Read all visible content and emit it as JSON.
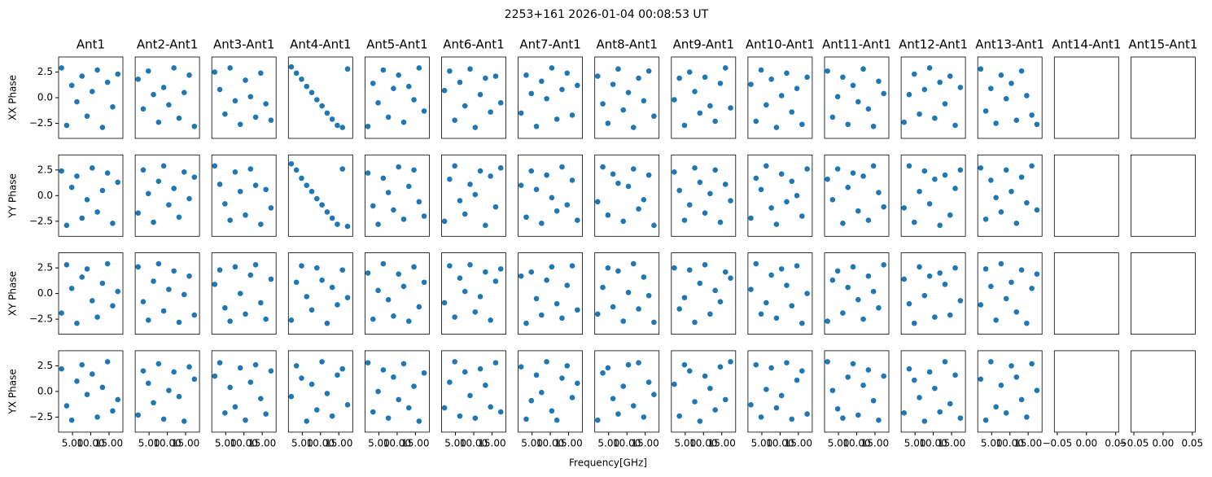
{
  "chart_data": {
    "type": "scatter",
    "title": "2253+161 2026-01-04 00:08:53 UT",
    "xlabel": "Frequency[GHz]",
    "rows": [
      "XX Phase",
      "YY Phase",
      "XY Phase",
      "YX Phase"
    ],
    "columns": [
      "Ant1",
      "Ant2-Ant1",
      "Ant3-Ant1",
      "Ant4-Ant1",
      "Ant5-Ant1",
      "Ant6-Ant1",
      "Ant7-Ant1",
      "Ant8-Ant1",
      "Ant9-Ant1",
      "Ant10-Ant1",
      "Ant11-Ant1",
      "Ant12-Ant1",
      "Ant13-Ant1",
      "Ant14-Ant1",
      "Ant15-Ant1"
    ],
    "color": "#1f77b4",
    "xlim": [
      1.2,
      18.8
    ],
    "xticks": [
      {
        "value": 5,
        "label": "5.00"
      },
      {
        "value": 10,
        "label": "10.00"
      },
      {
        "value": 15,
        "label": "15.00"
      }
    ],
    "ylim": [
      -3.97,
      3.97
    ],
    "yticks": [
      {
        "value": -2.5,
        "label": "−2.5"
      },
      {
        "value": 0,
        "label": "0.0"
      },
      2.5
    ],
    "empty_xlim": [
      -0.055,
      0.055
    ],
    "empty_xticks": [
      {
        "value": -0.05,
        "label": "−0.05"
      },
      {
        "value": 0,
        "label": "0.00"
      },
      0.05
    ],
    "x": [
      2.0,
      3.4,
      4.8,
      6.2,
      7.6,
      9.0,
      10.4,
      11.8,
      13.2,
      14.6,
      16.0,
      17.4
    ],
    "panels": [
      [
        [
          2.9,
          -2.7,
          1.2,
          -0.4,
          2.1,
          -1.8,
          0.6,
          2.7,
          -2.9,
          1.5,
          -0.9,
          2.3
        ],
        [
          1.8,
          -1.1,
          2.6,
          0.3,
          -2.4,
          1.0,
          -0.7,
          2.9,
          -2.0,
          0.5,
          2.2,
          -2.8
        ],
        [
          2.5,
          0.8,
          -1.6,
          2.9,
          -0.3,
          -2.6,
          1.7,
          0.1,
          -1.9,
          2.4,
          -0.6,
          -2.2
        ],
        [
          3.0,
          2.4,
          1.8,
          1.1,
          0.5,
          -0.2,
          -0.8,
          -1.5,
          -2.1,
          -2.7,
          -2.9,
          2.8
        ],
        [
          -2.8,
          1.4,
          -0.5,
          2.7,
          -1.9,
          0.9,
          2.2,
          -2.4,
          1.1,
          -0.2,
          2.9,
          -1.3
        ],
        [
          0.7,
          2.6,
          -2.2,
          1.5,
          -0.8,
          2.8,
          -2.9,
          0.3,
          1.9,
          -1.4,
          2.1,
          -0.5
        ],
        [
          -1.5,
          2.2,
          0.4,
          -2.8,
          1.6,
          -0.1,
          2.9,
          -2.1,
          0.8,
          2.4,
          -1.7,
          1.2
        ],
        [
          2.1,
          -0.6,
          -2.5,
          1.3,
          2.8,
          -1.2,
          0.5,
          -2.9,
          1.9,
          -0.3,
          2.6,
          -1.8
        ],
        [
          -0.2,
          1.9,
          -2.7,
          2.5,
          0.6,
          -1.5,
          2.0,
          -0.8,
          -2.3,
          1.4,
          2.9,
          -1.0
        ],
        [
          1.3,
          -2.3,
          2.7,
          -0.7,
          1.8,
          -2.9,
          0.2,
          2.4,
          -1.4,
          0.9,
          -2.6,
          2.0
        ],
        [
          2.6,
          -1.9,
          0.1,
          2.0,
          -2.6,
          1.2,
          -0.4,
          2.8,
          -1.1,
          -2.8,
          1.6,
          0.4
        ],
        [
          -2.4,
          0.3,
          2.3,
          -1.6,
          0.8,
          2.9,
          -2.0,
          1.5,
          -0.6,
          2.1,
          -2.7,
          1.0
        ],
        [
          2.8,
          -1.3,
          0.9,
          -2.5,
          2.2,
          -0.1,
          1.4,
          -2.2,
          2.6,
          0.2,
          -1.7,
          -2.6
        ]
      ],
      [
        [
          2.4,
          -2.9,
          0.8,
          1.9,
          -2.2,
          -0.4,
          2.7,
          -1.6,
          0.5,
          2.2,
          -2.7,
          1.3
        ],
        [
          -1.7,
          2.5,
          0.2,
          -2.6,
          1.4,
          2.9,
          -0.9,
          0.7,
          -2.1,
          2.3,
          -0.3,
          1.8
        ],
        [
          2.9,
          1.1,
          -0.8,
          -2.4,
          2.3,
          0.4,
          -1.9,
          2.6,
          1.0,
          -2.8,
          0.6,
          -1.2
        ],
        [
          3.1,
          2.5,
          1.7,
          1.0,
          0.4,
          -0.3,
          -0.9,
          -1.6,
          -2.2,
          -2.8,
          2.6,
          -3.0
        ],
        [
          2.2,
          -1.0,
          -2.8,
          1.7,
          0.3,
          -1.4,
          2.8,
          -2.3,
          0.9,
          2.5,
          -0.6,
          -2.0
        ],
        [
          -2.5,
          1.6,
          2.9,
          -0.5,
          -1.8,
          1.1,
          0.1,
          2.4,
          -2.9,
          1.9,
          -1.1,
          2.7
        ],
        [
          1.0,
          -2.1,
          2.4,
          0.6,
          -2.7,
          2.0,
          -0.2,
          -1.5,
          2.8,
          -0.9,
          1.5,
          -2.4
        ],
        [
          -0.6,
          2.8,
          -1.9,
          2.1,
          1.2,
          -2.5,
          0.9,
          2.6,
          -1.3,
          -0.4,
          2.0,
          -2.9
        ],
        [
          2.3,
          0.5,
          -2.4,
          -0.9,
          2.7,
          1.3,
          -1.7,
          0.2,
          2.5,
          -2.6,
          1.1,
          -0.5
        ],
        [
          -2.2,
          1.7,
          0.6,
          2.9,
          -1.2,
          -2.8,
          2.1,
          -0.6,
          1.4,
          0.0,
          -2.0,
          2.6
        ],
        [
          1.6,
          -0.4,
          2.6,
          -2.7,
          0.8,
          2.2,
          -1.5,
          1.9,
          -2.4,
          2.9,
          0.3,
          -1.1
        ],
        [
          -1.2,
          2.9,
          -2.6,
          0.4,
          2.4,
          -0.8,
          1.6,
          -2.9,
          2.0,
          -1.9,
          0.7,
          2.5
        ],
        [
          2.7,
          -2.3,
          1.5,
          -0.2,
          -1.6,
          2.5,
          0.4,
          -2.7,
          1.8,
          -0.7,
          2.9,
          -1.4
        ]
      ],
      [
        [
          -1.9,
          2.8,
          0.5,
          -2.9,
          1.6,
          2.4,
          -0.7,
          -2.3,
          1.0,
          2.9,
          -1.2,
          0.2
        ],
        [
          2.6,
          -0.8,
          -2.6,
          1.2,
          2.9,
          -1.7,
          0.4,
          2.2,
          -2.8,
          -0.1,
          1.7,
          -2.1
        ],
        [
          0.9,
          2.3,
          -1.4,
          -2.7,
          2.6,
          0.0,
          -2.0,
          1.8,
          2.8,
          -0.9,
          -2.5,
          1.4
        ],
        [
          -2.6,
          1.1,
          2.7,
          -0.3,
          -1.6,
          2.5,
          1.3,
          -2.9,
          0.6,
          -1.1,
          2.3,
          -0.4
        ],
        [
          2.0,
          -2.5,
          0.3,
          2.9,
          -0.6,
          -2.2,
          1.9,
          0.7,
          -2.7,
          2.6,
          -1.3,
          1.1
        ],
        [
          -0.9,
          2.7,
          -2.3,
          1.5,
          0.2,
          2.8,
          -1.8,
          -0.3,
          2.1,
          -2.6,
          1.2,
          2.4
        ],
        [
          1.7,
          -2.9,
          2.1,
          -0.5,
          -2.1,
          1.3,
          2.6,
          -1.0,
          -2.4,
          0.8,
          2.7,
          -1.6
        ],
        [
          -2.0,
          0.6,
          2.5,
          -1.3,
          2.2,
          -2.7,
          0.1,
          2.9,
          -1.5,
          1.6,
          -0.2,
          -2.8
        ],
        [
          2.5,
          -1.5,
          -0.4,
          2.3,
          -2.8,
          1.0,
          2.8,
          -2.0,
          0.3,
          -0.8,
          2.1,
          1.5
        ],
        [
          0.4,
          2.9,
          -2.0,
          -0.9,
          1.8,
          -2.4,
          2.4,
          0.8,
          -1.2,
          2.7,
          -2.9,
          0.0
        ],
        [
          -2.7,
          1.3,
          2.2,
          -1.9,
          0.6,
          2.6,
          -0.6,
          -2.5,
          1.7,
          0.2,
          -1.4,
          2.8
        ],
        [
          1.4,
          -1.0,
          -2.9,
          2.6,
          -0.2,
          1.7,
          -2.3,
          2.0,
          0.9,
          -2.1,
          2.5,
          -0.7
        ],
        [
          -1.1,
          2.4,
          0.7,
          -2.6,
          2.9,
          -0.5,
          1.1,
          -1.8,
          2.3,
          -2.9,
          0.5,
          1.9
        ]
      ],
      [
        [
          2.2,
          -1.4,
          -2.8,
          1.0,
          2.6,
          -0.3,
          1.7,
          -2.5,
          0.4,
          2.9,
          -1.9,
          -0.8
        ],
        [
          -2.3,
          2.0,
          0.8,
          -1.1,
          2.7,
          -2.7,
          0.1,
          1.9,
          -0.5,
          -2.9,
          2.4,
          1.2
        ],
        [
          1.5,
          2.8,
          -2.1,
          0.4,
          -1.5,
          2.3,
          -2.8,
          0.9,
          2.6,
          -0.7,
          -2.2,
          2.0
        ],
        [
          -0.5,
          2.5,
          1.3,
          -2.9,
          0.7,
          -1.8,
          2.9,
          -0.2,
          -2.4,
          1.6,
          2.2,
          -1.3
        ],
        [
          2.8,
          -2.0,
          0.0,
          2.1,
          -2.6,
          1.4,
          -0.8,
          2.7,
          -1.6,
          0.5,
          -2.9,
          1.8
        ],
        [
          -1.6,
          0.9,
          2.9,
          -2.4,
          1.9,
          -0.4,
          -2.6,
          2.2,
          0.6,
          -1.5,
          2.8,
          -2.0
        ],
        [
          2.4,
          -2.7,
          -0.9,
          1.6,
          -0.1,
          2.9,
          -1.9,
          -2.8,
          1.3,
          2.5,
          -0.6,
          0.8
        ],
        [
          -2.8,
          1.8,
          2.3,
          -0.7,
          -2.2,
          0.5,
          2.6,
          -1.4,
          2.8,
          -2.5,
          0.9,
          -0.3
        ],
        [
          0.7,
          -2.4,
          2.6,
          2.0,
          -1.0,
          -2.9,
          1.5,
          0.3,
          -1.8,
          2.4,
          -0.8,
          2.9
        ],
        [
          -1.3,
          2.6,
          -2.5,
          0.2,
          2.3,
          -1.6,
          -0.4,
          2.8,
          -2.7,
          1.1,
          2.0,
          -2.2
        ],
        [
          2.9,
          0.1,
          -1.7,
          -2.6,
          1.4,
          2.7,
          -2.3,
          0.6,
          2.1,
          -0.9,
          -2.8,
          1.5
        ],
        [
          -2.1,
          2.2,
          1.1,
          -0.6,
          -2.9,
          1.9,
          0.3,
          -2.0,
          2.9,
          -1.2,
          1.6,
          -2.6
        ],
        [
          1.2,
          -2.8,
          2.9,
          -1.5,
          0.6,
          -2.1,
          2.5,
          1.4,
          -0.8,
          -2.5,
          2.7,
          0.1
        ]
      ]
    ]
  }
}
